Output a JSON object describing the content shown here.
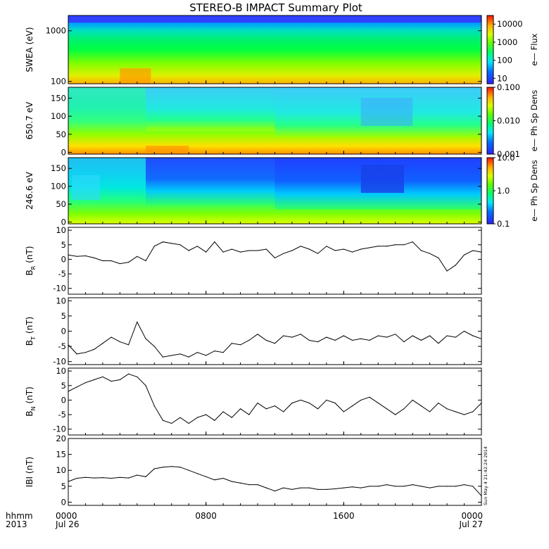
{
  "title": "STEREO-B IMPACT Summary Plot",
  "time_axis": {
    "row1_label": "hhmm",
    "row2_label": "2013",
    "ticks": [
      {
        "hours": 0,
        "time": "0000",
        "date": "Jul 26"
      },
      {
        "hours": 8,
        "time": "0800",
        "date": ""
      },
      {
        "hours": 16,
        "time": "1600",
        "date": ""
      },
      {
        "hours": 24,
        "time": "0000",
        "date": "Jul 27"
      }
    ],
    "range_hours": [
      0,
      24
    ]
  },
  "timestamp": "Sun May  4 21:42:24 2014",
  "chart_data": [
    {
      "type": "heatmap",
      "ylabel": "SWEA (eV)",
      "yscale": "log",
      "ylim": [
        90,
        2000
      ],
      "yticks": [
        "100",
        "1000"
      ],
      "colorbar": {
        "scale": "log",
        "range": [
          5,
          30000
        ],
        "ticks": [
          "10",
          "100",
          "1000",
          "10000"
        ],
        "label": "e— Flux"
      },
      "description_rows_eV": [
        100,
        150,
        250,
        400,
        700,
        1000,
        1500,
        1900
      ],
      "colors_by_row": [
        "#ffb000",
        "#d8f000",
        "#80ff00",
        "#00e040",
        "#00ff60",
        "#00f0a0",
        "#00b0ff",
        "#3040ff"
      ]
    },
    {
      "type": "heatmap",
      "ylabel": "650.7 eV",
      "ylim": [
        -5,
        180
      ],
      "yticks": [
        "0",
        "50",
        "100",
        "150"
      ],
      "colorbar": {
        "scale": "log",
        "range": [
          0.001,
          0.1
        ],
        "ticks": [
          "0.001",
          "0.010",
          "0.100"
        ],
        "label": "e— Ph Sp Dens"
      }
    },
    {
      "type": "heatmap",
      "ylabel": "246.6 eV",
      "ylim": [
        -5,
        180
      ],
      "yticks": [
        "0",
        "50",
        "100",
        "150"
      ],
      "colorbar": {
        "scale": "log",
        "range": [
          0.1,
          10
        ],
        "ticks": [
          "0.1",
          "1.0",
          "10.0"
        ],
        "label": "e— Ph Sp Dens"
      }
    },
    {
      "type": "line",
      "ylabel_main": "B",
      "ylabel_sub": "R",
      "ylabel_unit": "(nT)",
      "ylim": [
        -12,
        11
      ],
      "yticks": [
        "-10",
        "-5",
        "0",
        "5",
        "10"
      ],
      "x": [
        0,
        0.5,
        1,
        1.5,
        2,
        2.5,
        3,
        3.5,
        4,
        4.5,
        5,
        5.5,
        6,
        6.5,
        7,
        7.5,
        8,
        8.5,
        9,
        9.5,
        10,
        10.5,
        11,
        11.5,
        12,
        12.5,
        13,
        13.5,
        14,
        14.5,
        15,
        15.5,
        16,
        16.5,
        17,
        17.5,
        18,
        18.5,
        19,
        19.5,
        20,
        20.5,
        21,
        21.5,
        22,
        22.5,
        23,
        23.5,
        24
      ],
      "y": [
        1.5,
        1.0,
        1.2,
        0.5,
        -0.5,
        -0.5,
        -1.5,
        -1.0,
        1.0,
        -0.5,
        4.5,
        6.0,
        5.5,
        5.0,
        3.0,
        4.5,
        2.5,
        6.0,
        2.5,
        3.5,
        2.5,
        3.0,
        3.0,
        3.5,
        0.5,
        2.0,
        3.0,
        4.5,
        3.5,
        2.0,
        4.5,
        3.0,
        3.5,
        2.5,
        3.5,
        4.0,
        4.5,
        4.5,
        5.0,
        5.0,
        6.0,
        3.0,
        2.0,
        0.5,
        -4.0,
        -2.0,
        1.5,
        3.0,
        2.5
      ]
    },
    {
      "type": "line",
      "ylabel_main": "B",
      "ylabel_sub": "T",
      "ylabel_unit": "(nT)",
      "ylim": [
        -11,
        11
      ],
      "yticks": [
        "-10",
        "-5",
        "0",
        "5",
        "10"
      ],
      "x": [
        0,
        0.5,
        1,
        1.5,
        2,
        2.5,
        3,
        3.5,
        4,
        4.5,
        5,
        5.5,
        6,
        6.5,
        7,
        7.5,
        8,
        8.5,
        9,
        9.5,
        10,
        10.5,
        11,
        11.5,
        12,
        12.5,
        13,
        13.5,
        14,
        14.5,
        15,
        15.5,
        16,
        16.5,
        17,
        17.5,
        18,
        18.5,
        19,
        19.5,
        20,
        20.5,
        21,
        21.5,
        22,
        22.5,
        23,
        23.5,
        24
      ],
      "y": [
        -4.5,
        -7.5,
        -7.0,
        -6.0,
        -4.0,
        -2.0,
        -3.5,
        -4.5,
        3.0,
        -2.5,
        -5.0,
        -8.5,
        -8.0,
        -7.5,
        -8.5,
        -7.0,
        -8.0,
        -6.5,
        -7.0,
        -4.0,
        -4.5,
        -3.0,
        -1.0,
        -3.0,
        -4.0,
        -1.5,
        -2.0,
        -1.0,
        -3.0,
        -3.5,
        -2.0,
        -3.0,
        -1.5,
        -3.0,
        -2.5,
        -3.0,
        -1.5,
        -2.0,
        -1.0,
        -3.5,
        -1.5,
        -3.0,
        -1.5,
        -4.0,
        -1.5,
        -2.0,
        0.0,
        -1.5,
        -2.5
      ]
    },
    {
      "type": "line",
      "ylabel_main": "B",
      "ylabel_sub": "N",
      "ylabel_unit": "(nT)",
      "ylim": [
        -12,
        11
      ],
      "yticks": [
        "-10",
        "-5",
        "0",
        "5",
        "10"
      ],
      "x": [
        0,
        0.5,
        1,
        1.5,
        2,
        2.5,
        3,
        3.5,
        4,
        4.5,
        5,
        5.5,
        6,
        6.5,
        7,
        7.5,
        8,
        8.5,
        9,
        9.5,
        10,
        10.5,
        11,
        11.5,
        12,
        12.5,
        13,
        13.5,
        14,
        14.5,
        15,
        15.5,
        16,
        16.5,
        17,
        17.5,
        18,
        18.5,
        19,
        19.5,
        20,
        20.5,
        21,
        21.5,
        22,
        22.5,
        23,
        23.5,
        24
      ],
      "y": [
        3.0,
        4.5,
        6.0,
        7.0,
        8.0,
        6.5,
        7.0,
        9.0,
        8.0,
        5.0,
        -2.0,
        -7.0,
        -8.0,
        -6.0,
        -8.0,
        -6.0,
        -5.0,
        -7.0,
        -4.0,
        -6.0,
        -3.0,
        -5.0,
        -1.0,
        -3.0,
        -2.0,
        -4.0,
        -1.0,
        0.0,
        -1.0,
        -3.0,
        0.0,
        -1.0,
        -4.0,
        -2.0,
        0.0,
        1.0,
        -1.0,
        -3.0,
        -5.0,
        -3.0,
        0.0,
        -2.0,
        -4.0,
        -1.0,
        -3.0,
        -4.0,
        -5.0,
        -4.0,
        -1.0
      ]
    },
    {
      "type": "line",
      "ylabel": "IBI (nT)",
      "ylim": [
        -1,
        20
      ],
      "yticks": [
        "0",
        "5",
        "10",
        "15",
        "20"
      ],
      "x": [
        0,
        0.5,
        1,
        1.5,
        2,
        2.5,
        3,
        3.5,
        4,
        4.5,
        5,
        5.5,
        6,
        6.5,
        7,
        7.5,
        8,
        8.5,
        9,
        9.5,
        10,
        10.5,
        11,
        11.5,
        12,
        12.5,
        13,
        13.5,
        14,
        14.5,
        15,
        15.5,
        16,
        16.5,
        17,
        17.5,
        18,
        18.5,
        19,
        19.5,
        20,
        20.5,
        21,
        21.5,
        22,
        22.5,
        23,
        23.5,
        24
      ],
      "y": [
        6.5,
        7.5,
        7.8,
        7.6,
        7.7,
        7.5,
        7.8,
        7.6,
        8.5,
        8.0,
        10.5,
        11.0,
        11.2,
        11.0,
        10.0,
        9.0,
        8.0,
        7.0,
        7.5,
        6.5,
        6.0,
        5.5,
        5.5,
        4.5,
        3.5,
        4.5,
        4.0,
        4.5,
        4.5,
        4.0,
        4.0,
        4.2,
        4.5,
        4.8,
        4.5,
        5.0,
        5.0,
        5.5,
        5.0,
        5.0,
        5.5,
        5.0,
        4.5,
        5.0,
        5.0,
        5.0,
        5.5,
        5.0,
        2.0
      ]
    }
  ]
}
